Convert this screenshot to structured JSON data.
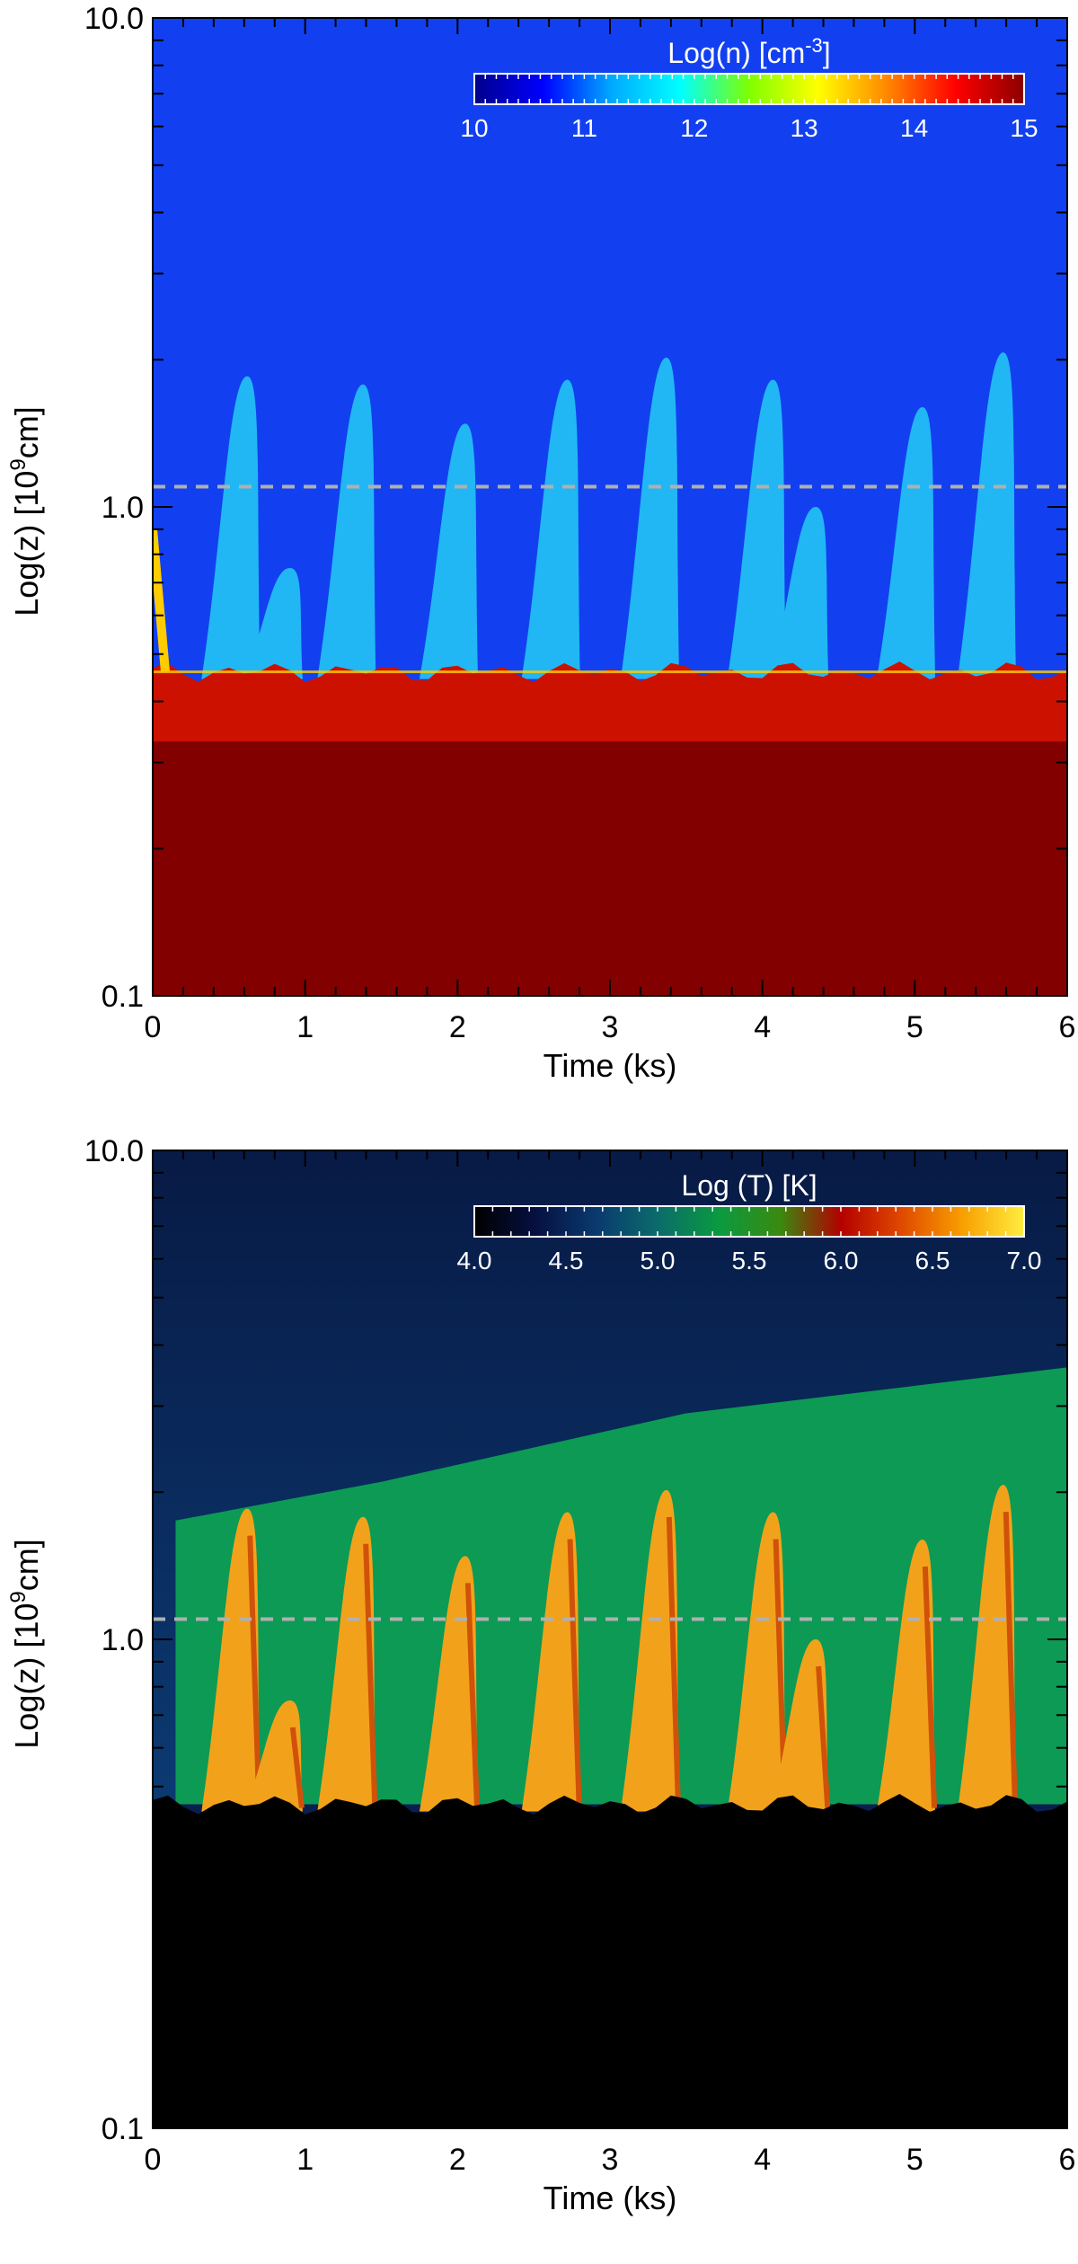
{
  "chart_data": [
    {
      "type": "heatmap",
      "title": "",
      "xlabel": "Time (ks)",
      "ylabel": "Log(z) [10^9cm]",
      "ylabel_parts": [
        "Log(z) [10",
        "9",
        "cm]"
      ],
      "xlim": [
        0,
        6
      ],
      "ylim": [
        0.1,
        10.0
      ],
      "yscale": "log",
      "x_ticks": [
        "0",
        "1",
        "2",
        "3",
        "4",
        "5",
        "6"
      ],
      "y_ticks": [
        "0.1",
        "1.0",
        "10.0"
      ],
      "reference_line_z": 1.1,
      "colorbar": {
        "label": "Log(n) [cm^-3]",
        "label_parts": [
          "Log(n) [cm",
          "-3",
          "]"
        ],
        "ticks": [
          "10",
          "11",
          "12",
          "13",
          "14",
          "15"
        ],
        "range": [
          10,
          15
        ],
        "colors": [
          "#00008b",
          "#0000ff",
          "#00aaff",
          "#00ffff",
          "#7fff00",
          "#ffff00",
          "#ff8800",
          "#ff0000",
          "#8b0000"
        ]
      },
      "background_colors": {
        "corona": "#1240f0",
        "chromosphere": "#820000",
        "boundary": "#cc1100",
        "events": "#21b7f5"
      },
      "boundary_z": 0.46,
      "events": [
        {
          "t": 0.62,
          "peak_z": 1.85
        },
        {
          "t": 0.9,
          "peak_z": 0.75
        },
        {
          "t": 1.38,
          "peak_z": 1.78
        },
        {
          "t": 2.05,
          "peak_z": 1.48
        },
        {
          "t": 2.72,
          "peak_z": 1.82
        },
        {
          "t": 3.37,
          "peak_z": 2.02
        },
        {
          "t": 4.07,
          "peak_z": 1.82
        },
        {
          "t": 4.35,
          "peak_z": 1.0
        },
        {
          "t": 5.05,
          "peak_z": 1.6
        },
        {
          "t": 5.58,
          "peak_z": 2.07
        }
      ]
    },
    {
      "type": "heatmap",
      "title": "",
      "xlabel": "Time (ks)",
      "ylabel": "Log(z) [10^9cm]",
      "ylabel_parts": [
        "Log(z) [10",
        "9",
        "cm]"
      ],
      "xlim": [
        0,
        6
      ],
      "ylim": [
        0.1,
        10.0
      ],
      "yscale": "log",
      "x_ticks": [
        "0",
        "1",
        "2",
        "3",
        "4",
        "5",
        "6"
      ],
      "y_ticks": [
        "0.1",
        "1.0",
        "10.0"
      ],
      "reference_line_z": 1.1,
      "colorbar": {
        "label": "Log (T) [K]",
        "ticks": [
          "4.0",
          "4.5",
          "5.0",
          "5.5",
          "6.0",
          "6.5",
          "7.0"
        ],
        "range": [
          4.0,
          7.0
        ],
        "colors": [
          "#000000",
          "#061040",
          "#0a3a6e",
          "#0b6b6b",
          "#0a9a40",
          "#3a8a10",
          "#b40000",
          "#e04a00",
          "#f8a000",
          "#ffee40"
        ]
      },
      "background_colors": {
        "corona": "#0a1e50",
        "transition": "#0c9a55",
        "chromosphere": "#000000",
        "events": "#f2a21a"
      },
      "boundary_z": 0.46,
      "transition_front": [
        [
          0.15,
          1.75
        ],
        [
          1.5,
          2.1
        ],
        [
          3.5,
          2.9
        ],
        [
          5.0,
          3.3
        ],
        [
          6.0,
          3.6
        ]
      ],
      "events": [
        {
          "t": 0.62,
          "peak_z": 1.85
        },
        {
          "t": 0.9,
          "peak_z": 0.75
        },
        {
          "t": 1.38,
          "peak_z": 1.78
        },
        {
          "t": 2.05,
          "peak_z": 1.48
        },
        {
          "t": 2.72,
          "peak_z": 1.82
        },
        {
          "t": 3.37,
          "peak_z": 2.02
        },
        {
          "t": 4.07,
          "peak_z": 1.82
        },
        {
          "t": 4.35,
          "peak_z": 1.0
        },
        {
          "t": 5.05,
          "peak_z": 1.6
        },
        {
          "t": 5.58,
          "peak_z": 2.07
        }
      ]
    }
  ]
}
